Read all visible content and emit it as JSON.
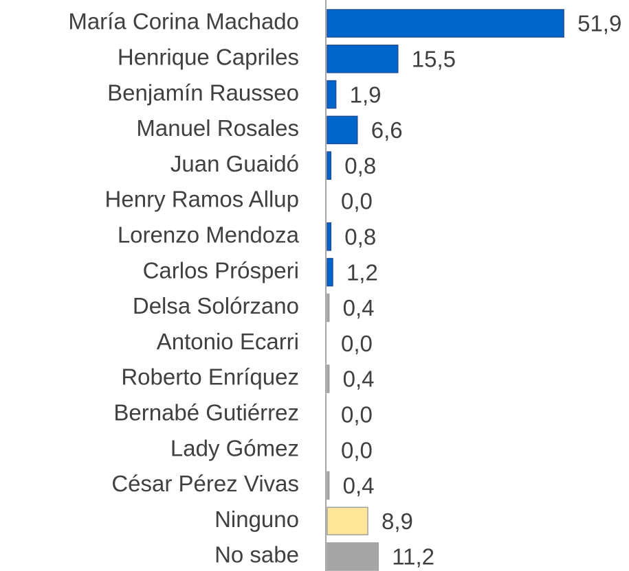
{
  "chart_data": {
    "type": "barh",
    "categories": [
      "María Corina Machado",
      "Henrique Capriles",
      "Benjamín Rausseo",
      "Manuel Rosales",
      "Juan Guaidó",
      "Henry Ramos Allup",
      "Lorenzo Mendoza",
      "Carlos Prósperi",
      "Delsa Solórzano",
      "Antonio Ecarri",
      "Roberto Enríquez",
      "Bernabé Gutiérrez",
      "Lady Gómez",
      "César Pérez Vivas",
      "Ninguno",
      "No sabe"
    ],
    "values": [
      51.9,
      15.5,
      1.9,
      6.6,
      0.8,
      0.0,
      0.8,
      1.2,
      0.4,
      0.0,
      0.4,
      0.0,
      0.0,
      0.4,
      8.9,
      11.2
    ],
    "value_labels": [
      "51,9",
      "15,5",
      "1,9",
      "6,6",
      "0,8",
      "0,0",
      "0,8",
      "1,2",
      "0,4",
      "0,0",
      "0,4",
      "0,0",
      "0,0",
      "0,4",
      "8,9",
      "11,2"
    ],
    "colors": [
      "#0066cc",
      "#0066cc",
      "#0066cc",
      "#0066cc",
      "#0066cc",
      "#0066cc",
      "#0066cc",
      "#0066cc",
      "#a6a6a6",
      "#a6a6a6",
      "#a6a6a6",
      "#a6a6a6",
      "#a6a6a6",
      "#a6a6a6",
      "#ffe699",
      "#a6a6a6"
    ]
  }
}
